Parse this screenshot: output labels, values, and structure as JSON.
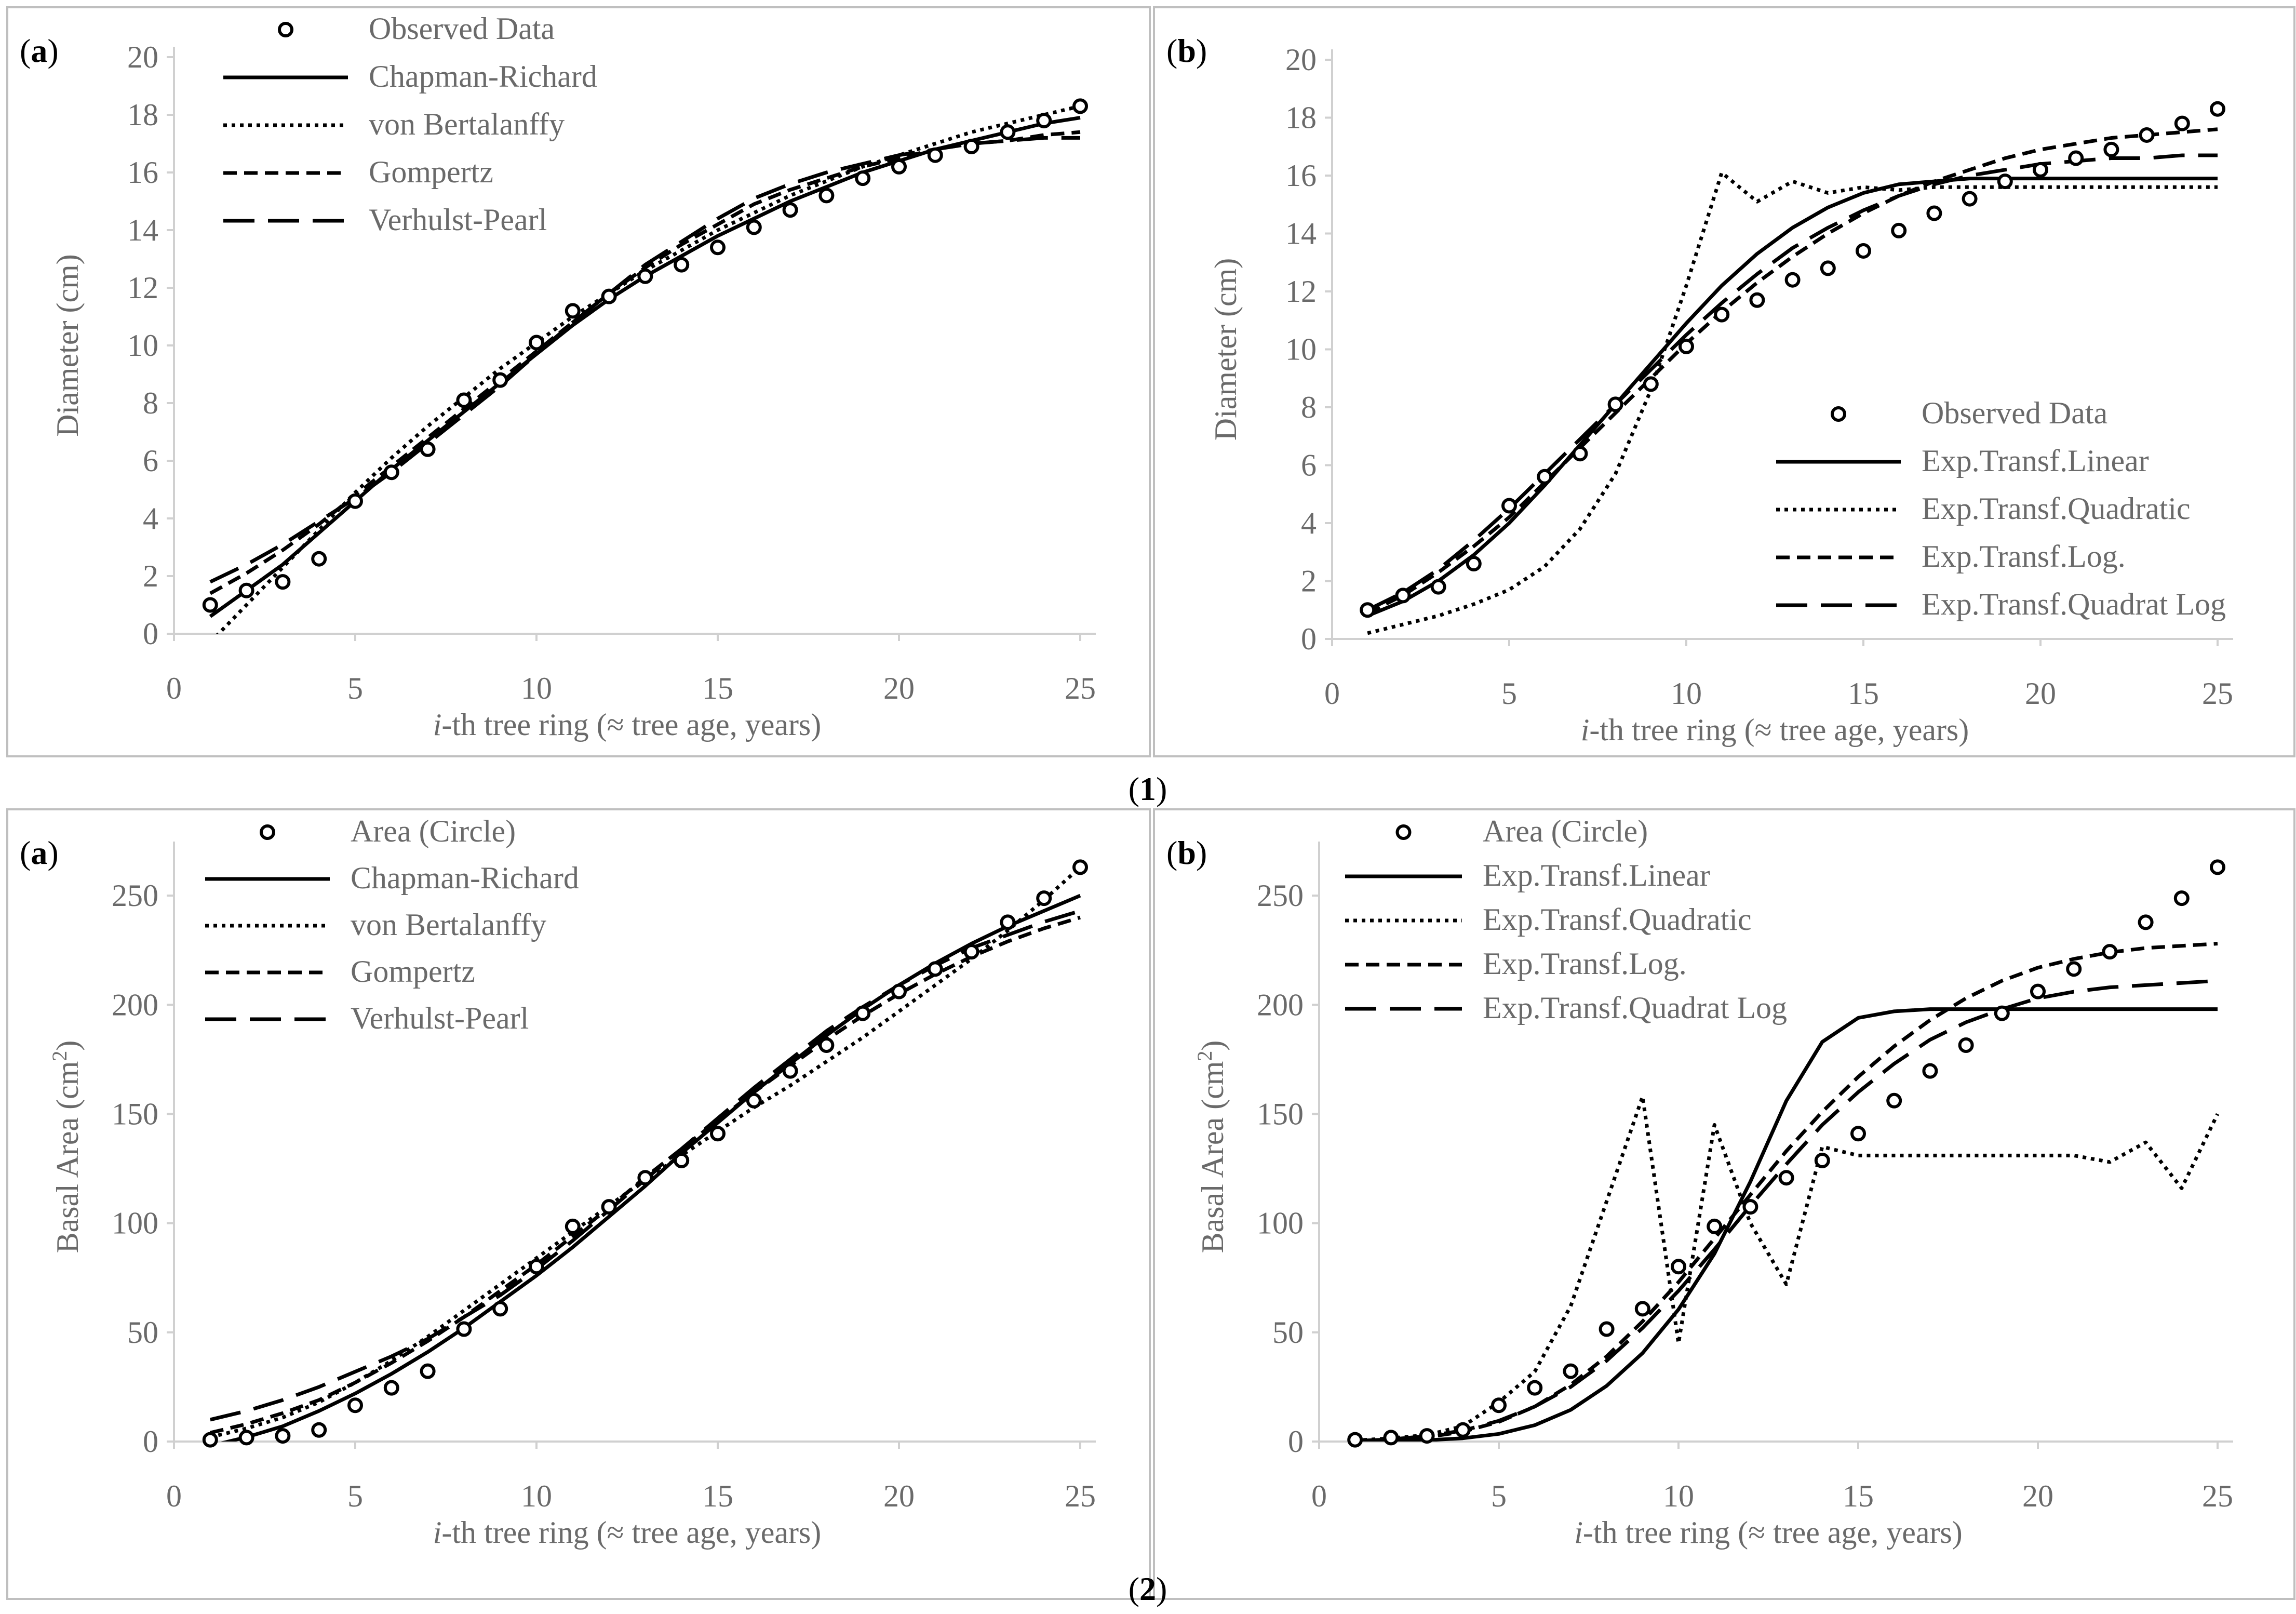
{
  "figure_numbers": [
    "(1)",
    "(2)"
  ],
  "chart_data": [
    {
      "id": "1a",
      "type": "line",
      "panel_label": "(a)",
      "figure": "(1)",
      "title": "",
      "xlabel": "i-th tree ring (≈ tree age, years)",
      "xlabel_italic": "i",
      "ylabel": "Diameter (cm)",
      "xlim": [
        0,
        25
      ],
      "ylim": [
        0,
        20
      ],
      "xticks": [
        0,
        5,
        10,
        15,
        20,
        25
      ],
      "yticks": [
        0,
        2,
        4,
        6,
        8,
        10,
        12,
        14,
        16,
        18,
        20
      ],
      "legend_position": "top-left",
      "observed": {
        "name": "Observed Data",
        "x": [
          1,
          2,
          3,
          4,
          5,
          6,
          7,
          8,
          9,
          10,
          11,
          12,
          13,
          14,
          15,
          16,
          17,
          18,
          19,
          20,
          21,
          22,
          23,
          24,
          25
        ],
        "y": [
          1.0,
          1.5,
          1.8,
          2.6,
          4.6,
          5.6,
          6.4,
          8.1,
          8.8,
          10.1,
          11.2,
          11.7,
          12.4,
          12.8,
          13.4,
          14.1,
          14.7,
          15.2,
          15.8,
          16.2,
          16.6,
          16.9,
          17.4,
          17.8,
          18.3
        ]
      },
      "series": [
        {
          "name": "Chapman-Richard",
          "style": "solid",
          "values": [
            0.6,
            1.5,
            2.4,
            3.5,
            4.6,
            5.7,
            6.7,
            7.7,
            8.7,
            9.7,
            10.7,
            11.6,
            12.4,
            13.1,
            13.8,
            14.4,
            15.0,
            15.5,
            16.0,
            16.4,
            16.8,
            17.1,
            17.4,
            17.7,
            17.9
          ]
        },
        {
          "name": "von Bertalanffy",
          "style": "dotted",
          "values": [
            -0.3,
            1.0,
            2.3,
            3.6,
            4.9,
            6.1,
            7.2,
            8.2,
            9.2,
            10.1,
            11.0,
            11.8,
            12.6,
            13.3,
            14.0,
            14.6,
            15.2,
            15.7,
            16.2,
            16.6,
            17.0,
            17.4,
            17.7,
            18.0,
            18.3
          ]
        },
        {
          "name": "Gompertz",
          "style": "dashed",
          "values": [
            1.4,
            2.1,
            2.9,
            3.8,
            4.8,
            5.8,
            6.8,
            7.8,
            8.8,
            9.8,
            10.8,
            11.8,
            12.7,
            13.5,
            14.2,
            14.9,
            15.4,
            15.8,
            16.2,
            16.5,
            16.8,
            17.0,
            17.1,
            17.3,
            17.4
          ]
        },
        {
          "name": "Verhulst-Pearl",
          "style": "longdash",
          "values": [
            1.8,
            2.4,
            3.1,
            3.9,
            4.7,
            5.6,
            6.6,
            7.6,
            8.6,
            9.7,
            10.8,
            11.8,
            12.8,
            13.6,
            14.4,
            15.1,
            15.6,
            16.0,
            16.3,
            16.6,
            16.8,
            17.0,
            17.1,
            17.2,
            17.2
          ]
        }
      ]
    },
    {
      "id": "1b",
      "type": "line",
      "panel_label": "(b)",
      "figure": "(1)",
      "title": "",
      "xlabel": "i-th tree ring (≈ tree age, years)",
      "xlabel_italic": "i",
      "ylabel": "Diameter (cm)",
      "xlim": [
        0,
        25
      ],
      "ylim": [
        0,
        20
      ],
      "xticks": [
        0,
        5,
        10,
        15,
        20,
        25
      ],
      "yticks": [
        0,
        2,
        4,
        6,
        8,
        10,
        12,
        14,
        16,
        18,
        20
      ],
      "legend_position": "bottom-right",
      "observed": {
        "name": "Observed Data",
        "x": [
          1,
          2,
          3,
          4,
          5,
          6,
          7,
          8,
          9,
          10,
          11,
          12,
          13,
          14,
          15,
          16,
          17,
          18,
          19,
          20,
          21,
          22,
          23,
          24,
          25
        ],
        "y": [
          1.0,
          1.5,
          1.8,
          2.6,
          4.6,
          5.6,
          6.4,
          8.1,
          8.8,
          10.1,
          11.2,
          11.7,
          12.4,
          12.8,
          13.4,
          14.1,
          14.7,
          15.2,
          15.8,
          16.2,
          16.6,
          16.9,
          17.4,
          17.8,
          18.3
        ]
      },
      "series": [
        {
          "name": "Exp.Transf.Linear",
          "style": "solid",
          "values": [
            0.8,
            1.3,
            2.0,
            2.9,
            4.0,
            5.3,
            6.7,
            8.1,
            9.5,
            10.9,
            12.2,
            13.3,
            14.2,
            14.9,
            15.4,
            15.7,
            15.8,
            15.9,
            15.9,
            15.9,
            15.9,
            15.9,
            15.9,
            15.9,
            15.9
          ]
        },
        {
          "name": "Exp.Transf.Quadratic",
          "style": "dotted",
          "values": [
            0.2,
            0.5,
            0.8,
            1.2,
            1.7,
            2.5,
            3.8,
            5.7,
            8.6,
            12.2,
            16.1,
            15.1,
            15.8,
            15.4,
            15.6,
            15.5,
            15.6,
            15.6,
            15.6,
            15.6,
            15.6,
            15.6,
            15.6,
            15.6,
            15.6
          ]
        },
        {
          "name": "Exp.Transf.Log.",
          "style": "dashed",
          "values": [
            0.9,
            1.5,
            2.3,
            3.2,
            4.2,
            5.4,
            6.6,
            7.8,
            9.0,
            10.2,
            11.3,
            12.3,
            13.2,
            14.0,
            14.7,
            15.3,
            15.8,
            16.2,
            16.6,
            16.9,
            17.1,
            17.3,
            17.4,
            17.5,
            17.6
          ]
        },
        {
          "name": "Exp.Transf.Quadrat Log",
          "style": "longdash",
          "values": [
            1.0,
            1.6,
            2.4,
            3.4,
            4.5,
            5.7,
            6.9,
            8.1,
            9.3,
            10.5,
            11.6,
            12.6,
            13.5,
            14.2,
            14.8,
            15.3,
            15.7,
            16.0,
            16.2,
            16.4,
            16.5,
            16.6,
            16.6,
            16.7,
            16.7
          ]
        }
      ]
    },
    {
      "id": "2a",
      "type": "line",
      "panel_label": "(a)",
      "figure": "(2)",
      "title": "",
      "xlabel": "i-th tree ring (≈ tree age, years)",
      "xlabel_italic": "i",
      "ylabel": "Basal Area (cm2)",
      "ylabel_parts": [
        "Basal Area (cm",
        "2",
        ")"
      ],
      "xlim": [
        0,
        25
      ],
      "ylim": [
        0,
        270
      ],
      "xticks": [
        0,
        5,
        10,
        15,
        20,
        25
      ],
      "yticks": [
        0,
        50,
        100,
        150,
        200,
        250
      ],
      "legend_position": "top-left",
      "observed": {
        "name": "Area (Circle)",
        "x": [
          1,
          2,
          3,
          4,
          5,
          6,
          7,
          8,
          9,
          10,
          11,
          12,
          13,
          14,
          15,
          16,
          17,
          18,
          19,
          20,
          21,
          22,
          23,
          24,
          25
        ],
        "y": [
          0.8,
          1.8,
          2.6,
          5.3,
          16.6,
          24.6,
          32.2,
          51.5,
          60.8,
          80.1,
          98.5,
          107.5,
          120.8,
          128.7,
          141.0,
          156.1,
          169.7,
          181.5,
          196.1,
          206.1,
          216.4,
          224.3,
          237.8,
          248.8,
          263.0
        ]
      },
      "series": [
        {
          "name": "Chapman-Richard",
          "style": "solid",
          "values": [
            -2,
            2,
            7,
            14,
            22,
            31,
            41,
            52,
            64,
            76,
            89,
            103,
            117,
            132,
            146,
            160,
            173,
            186,
            198,
            209,
            219,
            228,
            236,
            243,
            250
          ]
        },
        {
          "name": "von Bertalanffy",
          "style": "dotted",
          "values": [
            2,
            6,
            11,
            18,
            27,
            37,
            48,
            60,
            72,
            84,
            96,
            108,
            120,
            131,
            142,
            153,
            163,
            174,
            185,
            197,
            209,
            221,
            234,
            248,
            263
          ]
        },
        {
          "name": "Gompertz",
          "style": "dashed",
          "values": [
            4,
            8,
            13,
            19,
            27,
            36,
            46,
            57,
            69,
            81,
            94,
            107,
            121,
            134,
            147,
            160,
            172,
            184,
            195,
            205,
            214,
            222,
            229,
            235,
            240
          ]
        },
        {
          "name": "Verhulst-Pearl",
          "style": "longdash",
          "values": [
            10,
            14,
            19,
            25,
            32,
            39,
            47,
            57,
            67,
            79,
            92,
            106,
            120,
            134,
            148,
            162,
            175,
            188,
            199,
            209,
            218,
            226,
            232,
            238,
            243
          ]
        }
      ]
    },
    {
      "id": "2b",
      "type": "line",
      "panel_label": "(b)",
      "figure": "(2)",
      "title": "",
      "xlabel": "i-th tree ring (≈ tree age, years)",
      "xlabel_italic": "i",
      "ylabel": "Basal Area (cm2)",
      "ylabel_parts": [
        "Basal Area (cm",
        "2",
        ")"
      ],
      "xlim": [
        0,
        25
      ],
      "ylim": [
        0,
        270
      ],
      "xticks": [
        0,
        5,
        10,
        15,
        20,
        25
      ],
      "yticks": [
        0,
        50,
        100,
        150,
        200,
        250
      ],
      "legend_position": "top-left",
      "observed": {
        "name": "Area (Circle)",
        "x": [
          1,
          2,
          3,
          4,
          5,
          6,
          7,
          8,
          9,
          10,
          11,
          12,
          13,
          14,
          15,
          16,
          17,
          18,
          19,
          20,
          21,
          22,
          23,
          24,
          25
        ],
        "y": [
          0.8,
          1.8,
          2.6,
          5.3,
          16.6,
          24.6,
          32.2,
          51.5,
          60.8,
          80.1,
          98.5,
          107.5,
          120.8,
          128.7,
          141.0,
          156.1,
          169.7,
          181.5,
          196.1,
          206.1,
          216.4,
          224.3,
          237.8,
          248.8,
          263.0
        ]
      },
      "series": [
        {
          "name": "Exp.Transf.Linear",
          "style": "solid",
          "values": [
            0,
            0.2,
            0.6,
            1.5,
            3.5,
            7.5,
            14.5,
            25.5,
            40.5,
            60.5,
            86,
            119,
            156,
            183,
            194,
            197,
            198,
            198,
            198,
            198,
            198,
            198,
            198,
            198,
            198
          ]
        },
        {
          "name": "Exp.Transf.Quadratic",
          "style": "dotted",
          "values": [
            0.5,
            1.5,
            3,
            7,
            18,
            32,
            62,
            110,
            158,
            45,
            145,
            100,
            72,
            135,
            131,
            131,
            131,
            131,
            131,
            131,
            131,
            128,
            137,
            116,
            150
          ]
        },
        {
          "name": "Exp.Transf.Log.",
          "style": "dashed",
          "values": [
            0.2,
            0.8,
            2,
            4.5,
            9,
            16,
            26,
            39,
            55,
            73,
            93,
            113,
            133,
            151,
            167,
            181,
            193,
            203,
            211,
            217,
            221,
            224,
            226,
            227,
            228
          ]
        },
        {
          "name": "Exp.Transf.Quadrat Log",
          "style": "longdash",
          "values": [
            0.3,
            1,
            2.5,
            5,
            9.5,
            16,
            25,
            37,
            52,
            69,
            88,
            108,
            127,
            145,
            160,
            173,
            184,
            192,
            198,
            203,
            206,
            208,
            209,
            210,
            211
          ]
        }
      ]
    }
  ]
}
